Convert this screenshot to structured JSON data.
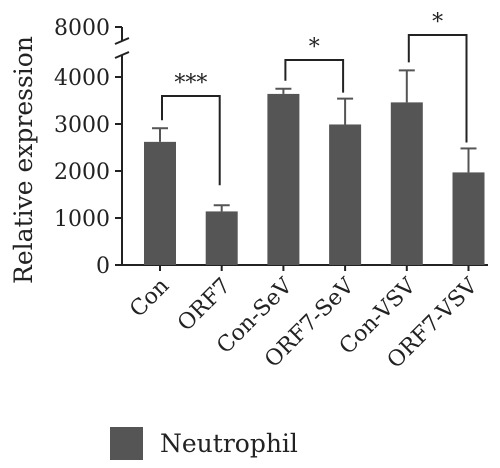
{
  "chart_data": {
    "type": "bar",
    "ylabel": "Relative expression",
    "ylim": [
      0,
      8000
    ],
    "yticks": [
      "0",
      "1000",
      "2000",
      "3000",
      "4000",
      "8000"
    ],
    "categories": [
      "Con",
      "ORF7",
      "Con-SeV",
      "ORF7-SeV",
      "Con-VSV",
      "ORF7-VSV"
    ],
    "series": [
      {
        "name": "Neutrophil",
        "color": "#555555",
        "values": [
          2620,
          1140,
          3640,
          2990,
          3460,
          1970
        ],
        "errors": [
          290,
          130,
          110,
          550,
          680,
          510
        ]
      }
    ],
    "significance": [
      {
        "from": 0,
        "to": 1,
        "label": "***"
      },
      {
        "from": 2,
        "to": 3,
        "label": "*"
      },
      {
        "from": 4,
        "to": 5,
        "label": "*"
      }
    ],
    "axis_break": {
      "from_value": 4500,
      "to_value": 8000
    },
    "legend_position": "bottom-left"
  }
}
